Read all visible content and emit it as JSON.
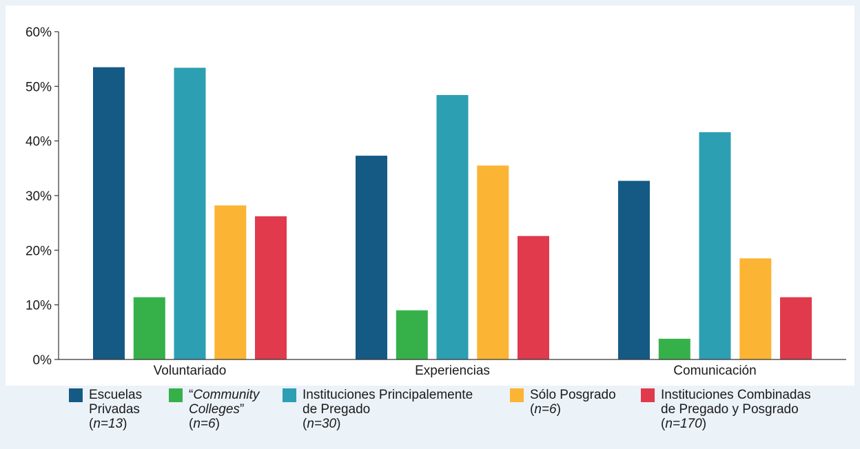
{
  "chart_data": {
    "type": "bar",
    "title": "",
    "xlabel": "",
    "ylabel": "",
    "categories": [
      "Voluntariado",
      "Experiencias",
      "Comunicación"
    ],
    "ylim": [
      0,
      60
    ],
    "yticks": [
      "0%",
      "10%",
      "20%",
      "30%",
      "40%",
      "50%",
      "60%"
    ],
    "grid": false,
    "legend_position": "bottom",
    "series": [
      {
        "name": "Escuelas Privadas (n=13)",
        "color": "#155a85",
        "values": [
          53.5,
          37.3,
          32.7
        ]
      },
      {
        "name": "“Community Colleges” (n=6)",
        "color": "#36b14a",
        "values": [
          11.4,
          9.0,
          3.8
        ]
      },
      {
        "name": "Instituciones Principalemente de Pregado (n=30)",
        "color": "#2c9fb3",
        "values": [
          53.4,
          48.4,
          41.6
        ]
      },
      {
        "name": "Sólo Posgrado (n=6)",
        "color": "#fbb433",
        "values": [
          28.2,
          35.5,
          18.5
        ]
      },
      {
        "name": "Instituciones Combinadas de Pregado y Posgrado (n=170)",
        "color": "#e03a4c",
        "values": [
          26.2,
          22.6,
          11.4
        ]
      }
    ]
  },
  "legend": {
    "items": [
      {
        "line1": "Escuelas",
        "line2": "Privadas",
        "line3_pre": "(",
        "line3_em": "n=13",
        "line3_post": ")"
      },
      {
        "line1_pre": "“",
        "line1_em": "Community",
        "line2_em": "Colleges",
        "line2_post": "”",
        "line3_pre": "(",
        "line3_em": "n=6",
        "line3_post": ")"
      },
      {
        "line1": "Instituciones Principalemente",
        "line2": "de Pregado",
        "line3_pre": "(",
        "line3_em": "n=30",
        "line3_post": ")"
      },
      {
        "line1": "Sólo Posgrado",
        "line2_pre": "(",
        "line2_em": "n=6",
        "line2_post": ")"
      },
      {
        "line1": "Instituciones Combinadas",
        "line2": "de Pregado y Posgrado",
        "line3_pre": "(",
        "line3_em": "n=170",
        "line3_post": ")"
      }
    ]
  }
}
